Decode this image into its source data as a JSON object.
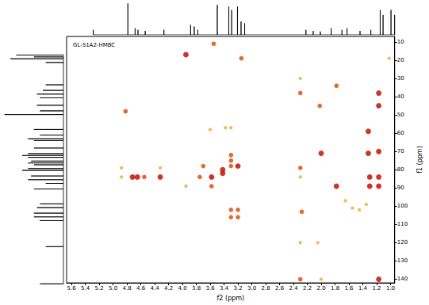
{
  "chart_data": {
    "type": "scatter",
    "title": "GL-S1A2-HMBC",
    "x_label": "f2 (ppm)",
    "y_label": "f1 (ppm)",
    "color": "#e05a1a",
    "grid": false,
    "xlim": [
      0.94,
      5.67
    ],
    "xticks": [
      {
        "value": 1,
        "label": "1.0"
      },
      1.2,
      1.4,
      1.6,
      1.8,
      {
        "value": 2,
        "label": "2.0"
      },
      2.2,
      2.4,
      2.6,
      2.8,
      {
        "value": 3,
        "label": "3.0"
      },
      3.2,
      3.4,
      3.6,
      3.8,
      {
        "value": 4,
        "label": "4.0"
      },
      4.2,
      4.4,
      4.6,
      4.8,
      {
        "value": 5,
        "label": "5.0"
      },
      5.2,
      5.4,
      5.6
    ],
    "ylim": [
      7,
      142
    ],
    "yticks": [
      10,
      20,
      30,
      40,
      50,
      60,
      70,
      80,
      90,
      100,
      110,
      120,
      130,
      140
    ],
    "peaks": [
      [
        4.82,
        48,
        2
      ],
      [
        4.88,
        79,
        1
      ],
      [
        4.88,
        84,
        1
      ],
      [
        4.72,
        84,
        3
      ],
      [
        4.65,
        84,
        3
      ],
      [
        4.55,
        84,
        2
      ],
      [
        4.32,
        84,
        3
      ],
      [
        4.32,
        79,
        1
      ],
      [
        3.95,
        17,
        3
      ],
      [
        3.95,
        89,
        1
      ],
      [
        3.75,
        84,
        2
      ],
      [
        3.7,
        78,
        2
      ],
      [
        3.6,
        58,
        1
      ],
      [
        3.58,
        84,
        3
      ],
      [
        3.58,
        89,
        2
      ],
      [
        3.55,
        11,
        2
      ],
      [
        3.42,
        80,
        3
      ],
      [
        3.42,
        82,
        3
      ],
      [
        3.38,
        57,
        1
      ],
      [
        3.3,
        57,
        1
      ],
      [
        3.3,
        72,
        2
      ],
      [
        3.3,
        75,
        2
      ],
      [
        3.3,
        78,
        2
      ],
      [
        3.3,
        102,
        2
      ],
      [
        3.3,
        106,
        2
      ],
      [
        3.2,
        78,
        3
      ],
      [
        3.2,
        102,
        2
      ],
      [
        3.2,
        106,
        2
      ],
      [
        3.15,
        19,
        2
      ],
      [
        2.3,
        30,
        1
      ],
      [
        2.3,
        38,
        2
      ],
      [
        2.3,
        79,
        2
      ],
      [
        2.3,
        84,
        1
      ],
      [
        2.28,
        103,
        2
      ],
      [
        2.3,
        120,
        1
      ],
      [
        2.3,
        140,
        2
      ],
      [
        2.05,
        120,
        1
      ],
      [
        2.02,
        45,
        2
      ],
      [
        2.0,
        71,
        3
      ],
      [
        2.0,
        140,
        1
      ],
      [
        1.78,
        34,
        2
      ],
      [
        1.78,
        89,
        3
      ],
      [
        1.65,
        97,
        1
      ],
      [
        1.55,
        101,
        1
      ],
      [
        1.45,
        102,
        1
      ],
      [
        1.35,
        99,
        1
      ],
      [
        1.32,
        59,
        3
      ],
      [
        1.32,
        71,
        3
      ],
      [
        1.3,
        84,
        3
      ],
      [
        1.3,
        89,
        3
      ],
      [
        1.17,
        38,
        3
      ],
      [
        1.17,
        45,
        3
      ],
      [
        1.17,
        70,
        3
      ],
      [
        1.17,
        84,
        3
      ],
      [
        1.17,
        89,
        3
      ],
      [
        1.17,
        140,
        3
      ],
      [
        1.02,
        19,
        1
      ]
    ],
    "f2_projection": {
      "lim": [
        0,
        1.05
      ],
      "peaks": [
        [
          5.3,
          0.15
        ],
        [
          4.82,
          0.95
        ],
        [
          4.72,
          0.2
        ],
        [
          4.68,
          0.15
        ],
        [
          4.58,
          0.12
        ],
        [
          4.32,
          0.15
        ],
        [
          3.95,
          0.3
        ],
        [
          3.9,
          0.25
        ],
        [
          3.85,
          0.15
        ],
        [
          3.58,
          0.9
        ],
        [
          3.42,
          0.85
        ],
        [
          3.38,
          0.75
        ],
        [
          3.3,
          0.85
        ],
        [
          3.25,
          0.4
        ],
        [
          3.2,
          0.35
        ],
        [
          2.35,
          0.15
        ],
        [
          2.25,
          0.12
        ],
        [
          2.15,
          0.1
        ],
        [
          2.0,
          0.2
        ],
        [
          1.85,
          0.15
        ],
        [
          1.78,
          0.2
        ],
        [
          1.6,
          0.12
        ],
        [
          1.45,
          0.15
        ],
        [
          1.32,
          0.75
        ],
        [
          1.28,
          0.6
        ],
        [
          1.17,
          0.75
        ],
        [
          1.12,
          0.6
        ]
      ]
    },
    "f1_projection": {
      "lim": [
        0,
        1.05
      ],
      "peaks": [
        [
          17,
          0.8
        ],
        [
          18,
          0.5
        ],
        [
          19,
          0.9
        ],
        [
          21,
          0.3
        ],
        [
          33,
          0.3
        ],
        [
          36,
          0.35
        ],
        [
          38,
          0.45
        ],
        [
          40,
          0.4
        ],
        [
          44,
          0.45
        ],
        [
          47,
          0.4
        ],
        [
          49,
          1.0
        ],
        [
          57,
          0.5
        ],
        [
          60,
          0.4
        ],
        [
          62,
          0.6
        ],
        [
          63,
          0.5
        ],
        [
          67,
          0.5
        ],
        [
          70,
          0.6
        ],
        [
          71,
          0.7
        ],
        [
          72,
          0.6
        ],
        [
          74,
          0.55
        ],
        [
          75,
          0.6
        ],
        [
          76,
          0.5
        ],
        [
          78,
          0.6
        ],
        [
          79,
          0.7
        ],
        [
          82,
          0.55
        ],
        [
          84,
          0.6
        ],
        [
          86,
          0.3
        ],
        [
          89,
          0.5
        ],
        [
          97,
          0.4
        ],
        [
          99,
          0.45
        ],
        [
          102,
          0.5
        ],
        [
          104,
          0.5
        ],
        [
          106,
          0.4
        ],
        [
          120,
          0.3
        ],
        [
          140,
          0.4
        ]
      ]
    }
  }
}
